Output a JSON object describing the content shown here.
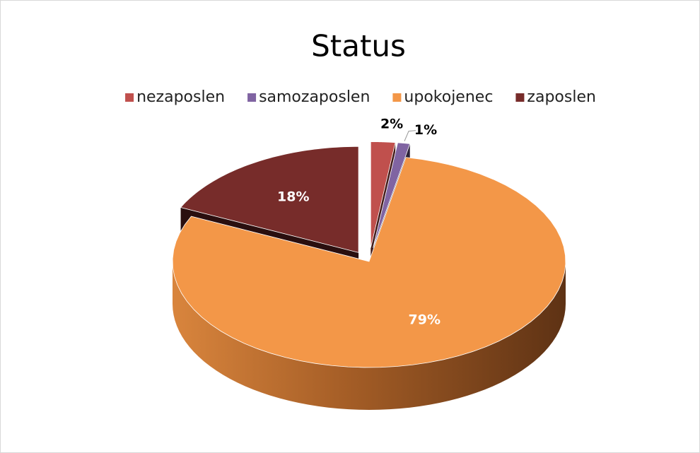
{
  "chart_data": {
    "type": "pie3d",
    "title": "Status",
    "categories": [
      "nezaposlen",
      "samozaposlen",
      "upokojenec",
      "zaposlen"
    ],
    "values": [
      2,
      1,
      79,
      18
    ],
    "value_labels": [
      "2%",
      "1%",
      "79%",
      "18%"
    ],
    "colors": [
      "#c0504d",
      "#8064a2",
      "#f39748",
      "#772c2a"
    ],
    "legend": "top"
  }
}
